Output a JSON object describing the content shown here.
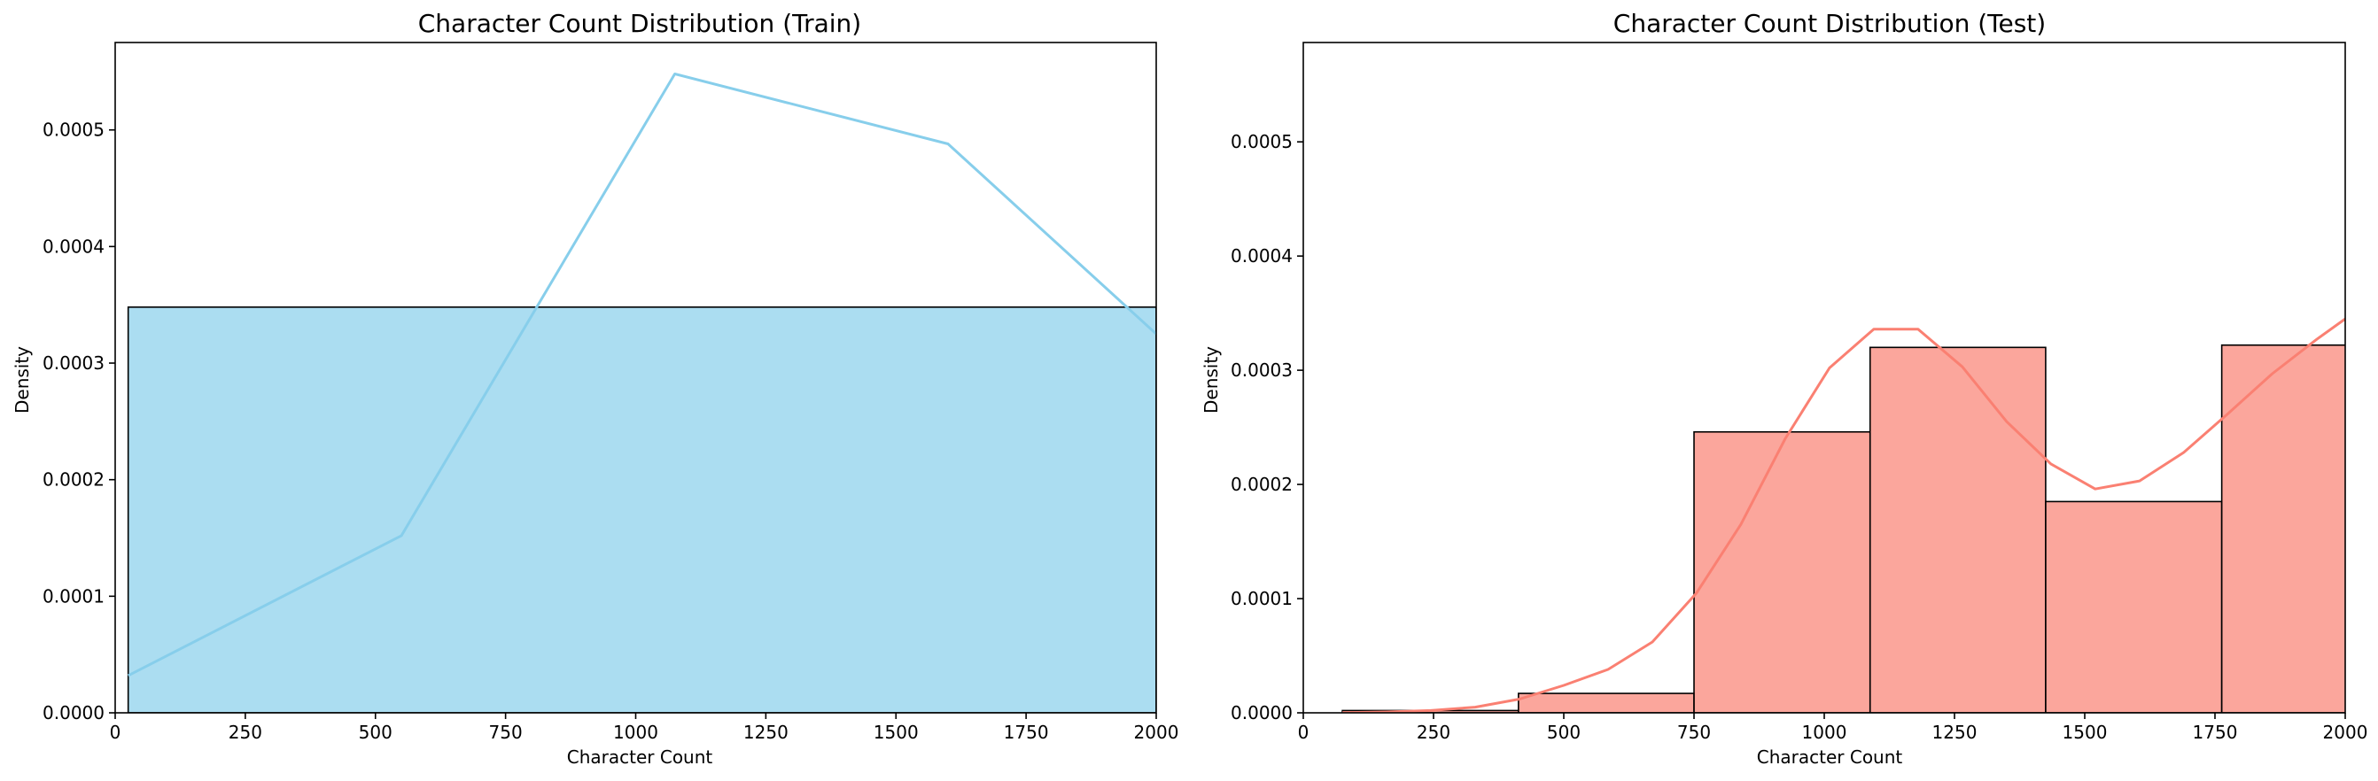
{
  "chart_data": [
    {
      "type": "bar",
      "title": "Character Count Distribution (Train)",
      "xlabel": "Character Count",
      "ylabel": "Density",
      "xlim": [
        0,
        2000
      ],
      "ylim": [
        0,
        0.000575
      ],
      "xticks": [
        0,
        250,
        500,
        750,
        1000,
        1250,
        1500,
        1750,
        2000
      ],
      "xtick_labels": [
        "0",
        "250",
        "500",
        "750",
        "1000",
        "1250",
        "1500",
        "1750",
        "2000"
      ],
      "yticks": [
        0,
        0.0001,
        0.0002,
        0.0003,
        0.0004,
        0.0005
      ],
      "ytick_labels": [
        "0.0000",
        "0.0001",
        "0.0002",
        "0.0003",
        "0.0004",
        "0.0005"
      ],
      "grid": false,
      "bar_color": "#87ceeb",
      "line_color": "#87ceeb",
      "bins": [
        {
          "x0": 25,
          "x1": 2000,
          "density": 0.000348
        }
      ],
      "kde": {
        "x": [
          25,
          550,
          1075,
          1600,
          2000
        ],
        "y": [
          3.2e-05,
          0.000152,
          0.000548,
          0.000488,
          0.000325
        ]
      }
    },
    {
      "type": "bar",
      "title": "Character Count Distribution (Test)",
      "xlabel": "Character Count",
      "ylabel": "Density",
      "xlim": [
        0,
        2000
      ],
      "ylim": [
        0,
        0.000587
      ],
      "xticks": [
        0,
        250,
        500,
        750,
        1000,
        1250,
        1500,
        1750,
        2000
      ],
      "xtick_labels": [
        "0",
        "250",
        "500",
        "750",
        "1000",
        "1250",
        "1500",
        "1750",
        "2000"
      ],
      "yticks": [
        0,
        0.0001,
        0.0002,
        0.0003,
        0.0004,
        0.0005
      ],
      "ytick_labels": [
        "0.0000",
        "0.0001",
        "0.0002",
        "0.0003",
        "0.0004",
        "0.0005"
      ],
      "grid": false,
      "bar_color": "#fa8072",
      "line_color": "#fa8072",
      "bins": [
        {
          "x0": 75,
          "x1": 413,
          "density": 2e-06
        },
        {
          "x0": 413,
          "x1": 750,
          "density": 1.7e-05
        },
        {
          "x0": 750,
          "x1": 1088,
          "density": 0.000246
        },
        {
          "x0": 1088,
          "x1": 1425,
          "density": 0.00032
        },
        {
          "x0": 1425,
          "x1": 1763,
          "density": 0.000185
        },
        {
          "x0": 1763,
          "x1": 2100,
          "density": 0.000322
        }
      ],
      "kde": {
        "x": [
          75,
          160,
          245,
          330,
          415,
          500,
          585,
          670,
          755,
          840,
          925,
          1010,
          1095,
          1180,
          1265,
          1350,
          1435,
          1520,
          1605,
          1690,
          1775,
          1860,
          1945,
          2000
        ],
        "y": [
          2e-07,
          8e-07,
          2e-06,
          5e-06,
          1.2e-05,
          2.4e-05,
          3.8e-05,
          6.2e-05,
          0.000105,
          0.000165,
          0.00024,
          0.000302,
          0.000336,
          0.000336,
          0.000303,
          0.000255,
          0.000218,
          0.000196,
          0.000203,
          0.000228,
          0.000262,
          0.000297,
          0.000327,
          0.000345
        ]
      }
    }
  ]
}
